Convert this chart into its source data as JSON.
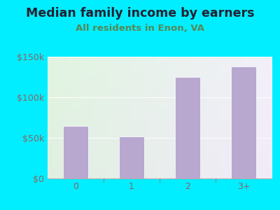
{
  "title": "Median family income by earners",
  "subtitle": "All residents in Enon, VA",
  "categories": [
    "0",
    "1",
    "2",
    "3+"
  ],
  "values": [
    65000,
    52000,
    125000,
    138000
  ],
  "bar_color": "#b8a8d0",
  "background_outer": "#00eeff",
  "background_inner_left": "#d8ecd0",
  "background_inner_right": "#e8f0f0",
  "background_inner_top": "#ddeedd",
  "title_color": "#222233",
  "subtitle_color": "#558855",
  "tick_label_color": "#886666",
  "axis_label_color": "#886666",
  "ylim": [
    0,
    150000
  ],
  "yticks": [
    0,
    50000,
    100000,
    150000
  ],
  "ytick_labels": [
    "$0",
    "$50k",
    "$100k",
    "$150k"
  ],
  "title_fontsize": 12.5,
  "subtitle_fontsize": 9.5,
  "tick_fontsize": 9
}
